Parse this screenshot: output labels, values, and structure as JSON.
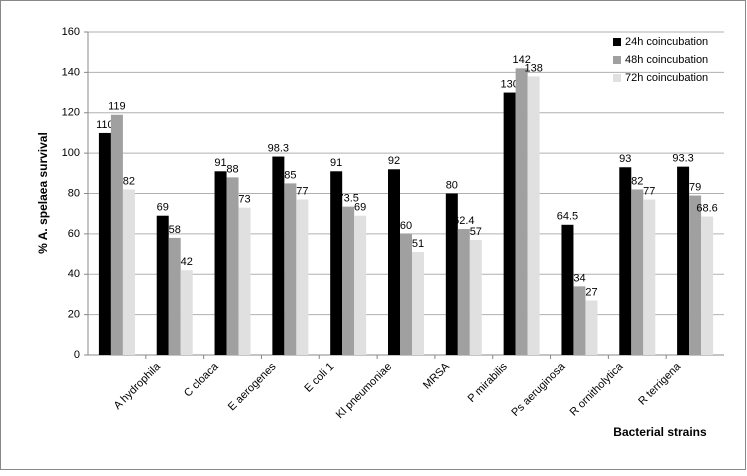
{
  "chart_data": {
    "type": "bar",
    "categories": [
      null,
      "A hydrophila",
      "C cloaca",
      "E aerogenes",
      "E coli 1",
      "Kl pneumoniae",
      "MRSA",
      "P mirabilis",
      "Ps aeruginosa",
      "R ornitholytica",
      "R terrigena"
    ],
    "series": [
      {
        "name": "24h coincubation",
        "color": "#000000",
        "values": [
          110,
          69,
          91,
          98.3,
          91,
          92,
          80,
          130,
          64.5,
          93,
          93.3
        ]
      },
      {
        "name": "48h coincubation",
        "color": "#a0a0a0",
        "values": [
          119,
          58,
          88,
          85,
          73.5,
          60,
          62.4,
          142,
          34,
          82,
          79
        ]
      },
      {
        "name": "72h coincubation",
        "color": "#e0e0e0",
        "values": [
          82,
          42,
          73,
          77,
          69,
          51,
          57,
          138,
          27,
          77,
          68.6
        ]
      }
    ],
    "ylabel": "% A. spelaea survival",
    "xlabel": "Bacterial strains",
    "ylim": [
      0,
      160
    ],
    "yticks": [
      0,
      20,
      40,
      60,
      80,
      100,
      120,
      140,
      160
    ],
    "grid": true,
    "legend": "upper right"
  }
}
